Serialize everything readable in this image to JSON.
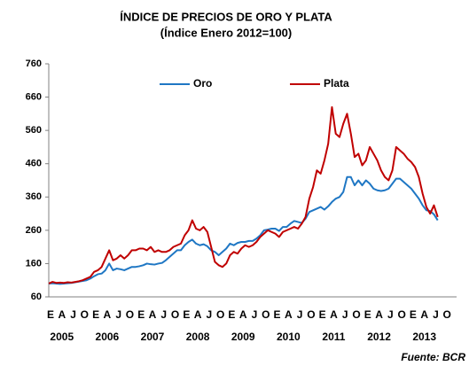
{
  "chart_data": {
    "type": "line",
    "title": "ÍNDICE DE PRECIOS DE ORO Y PLATA",
    "subtitle": "(Índice Enero 2012=100)",
    "source": "Fuente: BCR",
    "categories": [
      "E",
      null,
      null,
      "A",
      null,
      null,
      "J",
      null,
      null,
      "O",
      null,
      null,
      "E",
      null,
      null,
      "A",
      null,
      null,
      "J",
      null,
      null,
      "O",
      null,
      null,
      "E",
      null,
      null,
      "A",
      null,
      null,
      "J",
      null,
      null,
      "O",
      null,
      null,
      "E",
      null,
      null,
      "A",
      null,
      null,
      "J",
      null,
      null,
      "O",
      null,
      null,
      "E",
      null,
      null,
      "A",
      null,
      null,
      "J",
      null,
      null,
      "O",
      null,
      null,
      "E",
      null,
      null,
      "A",
      null,
      null,
      "J",
      null,
      null,
      "O",
      null,
      null,
      "E",
      null,
      null,
      "A",
      null,
      null,
      "J",
      null,
      null,
      "O",
      null,
      null,
      "E",
      null,
      null,
      "A",
      null,
      null,
      "J",
      null,
      null,
      "O",
      null,
      null,
      "E",
      null,
      null,
      "A",
      null,
      null,
      "J",
      null,
      null,
      "O",
      null,
      null
    ],
    "years": [
      "2005",
      "2006",
      "2007",
      "2008",
      "2009",
      "2010",
      "2011",
      "2012",
      "2013"
    ],
    "series": [
      {
        "name": "Oro",
        "color": "#1f77c4",
        "values": [
          100,
          101,
          100,
          99,
          100,
          101,
          102,
          104,
          106,
          108,
          110,
          115,
          122,
          128,
          130,
          140,
          160,
          140,
          145,
          143,
          140,
          145,
          150,
          150,
          152,
          155,
          160,
          158,
          157,
          160,
          162,
          170,
          180,
          190,
          200,
          200,
          215,
          225,
          232,
          220,
          215,
          218,
          212,
          200,
          195,
          185,
          195,
          205,
          220,
          215,
          222,
          225,
          225,
          228,
          228,
          235,
          245,
          260,
          262,
          265,
          265,
          258,
          270,
          270,
          280,
          288,
          285,
          282,
          295,
          315,
          320,
          325,
          330,
          322,
          332,
          345,
          355,
          360,
          375,
          420,
          420,
          395,
          410,
          395,
          410,
          400,
          385,
          380,
          378,
          380,
          385,
          400,
          415,
          415,
          405,
          395,
          385,
          370,
          355,
          335,
          320,
          318,
          308,
          290,
          null,
          null,
          null,
          null
        ]
      },
      {
        "name": "Plata",
        "color": "#c00000",
        "values": [
          100,
          105,
          102,
          103,
          102,
          104,
          103,
          105,
          107,
          110,
          115,
          120,
          135,
          140,
          150,
          175,
          200,
          170,
          175,
          185,
          175,
          185,
          200,
          200,
          205,
          205,
          200,
          210,
          195,
          200,
          195,
          195,
          200,
          210,
          215,
          220,
          245,
          260,
          290,
          265,
          260,
          270,
          255,
          210,
          165,
          155,
          150,
          160,
          185,
          195,
          190,
          205,
          215,
          210,
          215,
          225,
          240,
          250,
          260,
          255,
          250,
          240,
          255,
          260,
          265,
          270,
          265,
          280,
          300,
          355,
          390,
          440,
          430,
          470,
          520,
          630,
          550,
          540,
          580,
          610,
          550,
          480,
          490,
          455,
          470,
          510,
          490,
          470,
          440,
          420,
          410,
          440,
          510,
          500,
          490,
          475,
          465,
          450,
          420,
          370,
          330,
          310,
          335,
          300,
          null,
          null,
          null,
          null
        ]
      }
    ],
    "ylim": [
      60,
      760
    ],
    "yticks": [
      60,
      160,
      260,
      360,
      460,
      560,
      660,
      760
    ],
    "grid": false,
    "legend": "top"
  }
}
